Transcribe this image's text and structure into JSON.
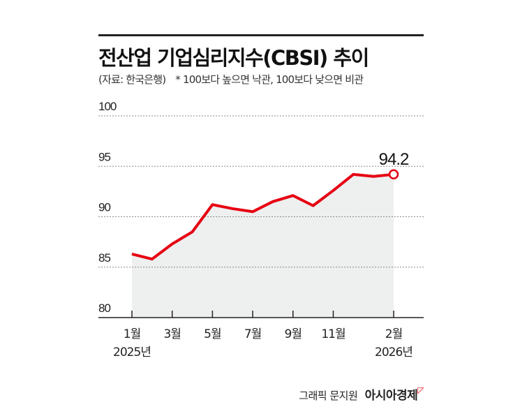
{
  "title": "전산업 기업심리지수(CBSI) 추이",
  "source": "(자료: 한국은행)",
  "note": "* 100보다 높으면 낙관, 100보다 낮으면 비관",
  "credit": "그래픽 문지원",
  "brand": "아시아경제",
  "chart_data": {
    "type": "area",
    "title": "전산업 기업심리지수(CBSI) 추이",
    "x": [
      "2025-01",
      "2025-02",
      "2025-03",
      "2025-04",
      "2025-05",
      "2025-06",
      "2025-07",
      "2025-08",
      "2025-09",
      "2025-10",
      "2025-11",
      "2025-12",
      "2026-01",
      "2026-02"
    ],
    "values": [
      86.3,
      85.8,
      87.3,
      88.5,
      91.2,
      90.8,
      90.5,
      91.5,
      92.1,
      91.1,
      92.6,
      94.2,
      94.0,
      94.2
    ],
    "ylim": [
      80,
      100
    ],
    "yticks": [
      "80",
      "85",
      "90",
      "95",
      "100"
    ],
    "xtick_labels": [
      {
        "index": 0,
        "label": "1월",
        "sub": "2025년"
      },
      {
        "index": 2,
        "label": "3월"
      },
      {
        "index": 4,
        "label": "5월"
      },
      {
        "index": 6,
        "label": "7월"
      },
      {
        "index": 8,
        "label": "9월"
      },
      {
        "index": 10,
        "label": "11월"
      },
      {
        "index": 13,
        "label": "2월",
        "sub": "2026년"
      }
    ],
    "annotation": "94.2",
    "grid": true,
    "line_color": "#e60012",
    "fill_color": "#eeefef"
  }
}
